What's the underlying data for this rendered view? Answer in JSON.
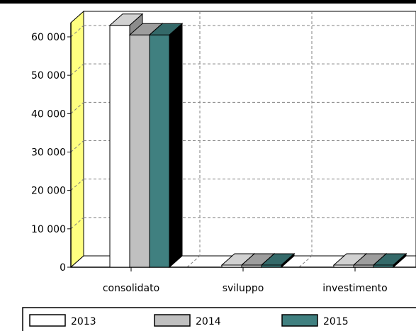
{
  "chart_data": {
    "type": "bar",
    "title": "",
    "xlabel": "",
    "ylabel": "",
    "categories": [
      "consolidato",
      "sviluppo",
      "investimento"
    ],
    "series": [
      {
        "name": "2013",
        "values": [
          63000,
          0,
          0
        ],
        "color": "#ffffff"
      },
      {
        "name": "2014",
        "values": [
          60500,
          0,
          0
        ],
        "color": "#c0c0c0"
      },
      {
        "name": "2015",
        "values": [
          60500,
          0,
          0
        ],
        "color": "#408080"
      }
    ],
    "ylim": [
      0,
      65000
    ],
    "yticks": [
      0,
      10000,
      20000,
      30000,
      40000,
      50000,
      60000
    ],
    "ytick_labels": [
      "0",
      "10 000",
      "20 000",
      "30 000",
      "40 000",
      "50 000",
      "60 000"
    ],
    "grid": true,
    "grid_style": "dashed",
    "style_3d": true,
    "wall_color": "#ffff80",
    "legend_placement": "bottom"
  }
}
